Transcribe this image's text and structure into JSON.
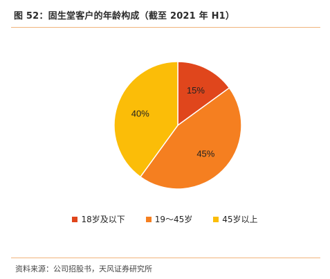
{
  "header": {
    "title": "图 52：固生堂客户的年龄构成（截至 2021 年 H1）"
  },
  "footer": {
    "source": "资料来源：公司招股书，天风证券研究所"
  },
  "chart_data": {
    "type": "pie",
    "categories": [
      "18岁及以下",
      "19～45岁",
      "45岁以上"
    ],
    "values": [
      15,
      45,
      40
    ],
    "data_labels": [
      "15%",
      "45%",
      "40%"
    ],
    "colors": [
      "#e0461c",
      "#f57f20",
      "#fbbd08"
    ],
    "legend_position": "bottom",
    "start_angle": "12 o'clock, clockwise"
  }
}
